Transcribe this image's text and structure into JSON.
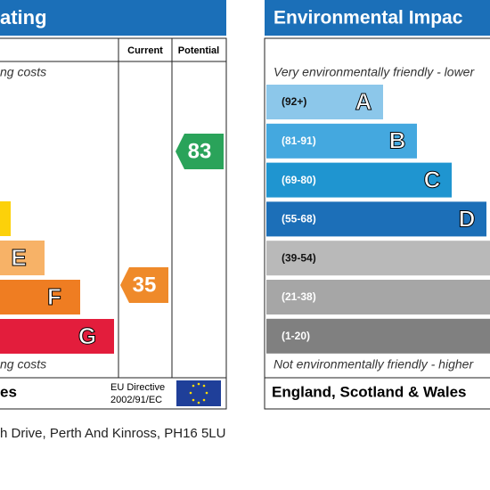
{
  "energy": {
    "title": "ating",
    "top_note": "ng costs",
    "bottom_note": "ng costs",
    "col_current": "Current",
    "col_potential": "Potential",
    "bands": [
      {
        "letter": "E"
      },
      {
        "letter": "F"
      },
      {
        "letter": "G"
      }
    ],
    "current": "35",
    "potential": "83",
    "footer": "es",
    "directive": [
      "EU Directive",
      "2002/91/EC"
    ]
  },
  "environment": {
    "title": "Environmental Impac",
    "top_note": "Very environmentally friendly - lower",
    "bottom_note": "Not environmentally friendly - higher",
    "bands": [
      {
        "range": "(92+)",
        "letter": "A"
      },
      {
        "range": "(81-91)",
        "letter": "B"
      },
      {
        "range": "(69-80)",
        "letter": "C"
      },
      {
        "range": "(55-68)",
        "letter": "D"
      },
      {
        "range": "(39-54)"
      },
      {
        "range": "(21-38)"
      },
      {
        "range": "(1-20)"
      }
    ],
    "footer": "England, Scotland & Wales"
  },
  "address": "h Drive, Perth And Kinross, PH16 5LU"
}
